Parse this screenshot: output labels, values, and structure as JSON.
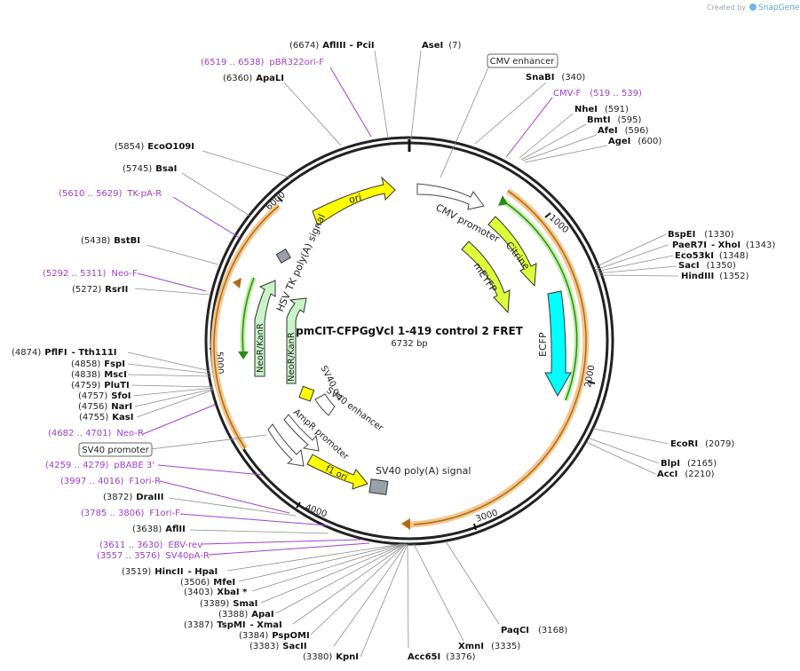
{
  "credit": {
    "prefix": "Created by",
    "brand": "SnapGene"
  },
  "map": {
    "name": "pmCIT-CFPGgVcl 1-419 control 2 FRET",
    "size": "6732 bp"
  },
  "ticks": [
    "1000",
    "2000",
    "3000",
    "4000",
    "5000",
    "6000"
  ],
  "boxed_labels": [
    "CMV enhancer",
    "SV40 promoter"
  ],
  "features": {
    "ori": "ori",
    "cmv_promoter": "CMV promoter",
    "citrine": "Citrine",
    "meyfp": "mEYFP",
    "ecfp": "ECFP",
    "hsv_tk": "HSV TK poly(A) signal",
    "neor1": "NeoR/KanR",
    "neor2": "NeoR/KanR",
    "sv40ori": "SV40 ori",
    "sv40enh": "SV40 enhancer",
    "ampr": "AmpR promoter",
    "f1ori": "f1 ori",
    "sv40pa": "SV40 poly(A) signal"
  },
  "colors": {
    "yellow": "#ffff00",
    "lime": "#dcff3a",
    "cyan": "#00ffff",
    "green_pale": "#c8f4c8",
    "orange": "#e8a84a",
    "primer": "#a23ed2"
  },
  "top_sites": [
    {
      "pos": "(6674)",
      "name": "AflIII",
      "extra": "- PciI"
    },
    {
      "name": "AseI",
      "pos": "(7)"
    },
    {
      "name": "SnaBI",
      "pos": "(340)"
    },
    {
      "name": "NheI",
      "pos": "(591)"
    },
    {
      "name": "BmtI",
      "pos": "(595)"
    },
    {
      "name": "AfeI",
      "pos": "(596)"
    },
    {
      "name": "AgeI",
      "pos": "(600)"
    },
    {
      "pos": "(6360)",
      "name": "ApaLI"
    },
    {
      "pos": "(5854)",
      "name": "EcoO109I"
    },
    {
      "pos": "(5745)",
      "name": "BsaI"
    },
    {
      "pos": "(5438)",
      "name": "BstBI"
    },
    {
      "pos": "(5272)",
      "name": "RsrII"
    }
  ],
  "right_sites": [
    {
      "name": "BspEI",
      "pos": "(1330)"
    },
    {
      "name": "PaeR7I",
      "extra": "- XhoI",
      "pos": "(1343)"
    },
    {
      "name": "Eco53kI",
      "pos": "(1348)"
    },
    {
      "name": "SacI",
      "pos": "(1350)"
    },
    {
      "name": "HindIII",
      "pos": "(1352)"
    },
    {
      "name": "EcoRI",
      "pos": "(2079)"
    },
    {
      "name": "BlpI",
      "pos": "(2165)"
    },
    {
      "name": "AccI",
      "pos": "(2210)"
    }
  ],
  "left_sites": [
    {
      "pos": "(4874)",
      "name": "PflFI",
      "extra": "- Tth111I"
    },
    {
      "pos": "(4858)",
      "name": "FspI"
    },
    {
      "pos": "(4838)",
      "name": "MscI"
    },
    {
      "pos": "(4759)",
      "name": "PluTI"
    },
    {
      "pos": "(4757)",
      "name": "SfoI"
    },
    {
      "pos": "(4756)",
      "name": "NarI"
    },
    {
      "pos": "(4755)",
      "name": "KasI"
    },
    {
      "pos": "(3872)",
      "name": "DraIII"
    },
    {
      "pos": "(3638)",
      "name": "AflII"
    }
  ],
  "bottom_sites": [
    {
      "pos": "(3519)",
      "name": "HincII",
      "extra": "- HpaI"
    },
    {
      "pos": "(3506)",
      "name": "MfeI"
    },
    {
      "pos": "(3403)",
      "name": "XbaI *"
    },
    {
      "pos": "(3389)",
      "name": "SmaI"
    },
    {
      "pos": "(3388)",
      "name": "ApaI"
    },
    {
      "pos": "(3387)",
      "name": "TspMI",
      "extra": "- XmaI"
    },
    {
      "pos": "(3384)",
      "name": "PspOMI"
    },
    {
      "pos": "(3383)",
      "name": "SacII"
    },
    {
      "pos": "(3380)",
      "name": "KpnI"
    },
    {
      "name": "Acc65I",
      "pos": "(3376)"
    },
    {
      "name": "XmnI",
      "pos": "(3335)"
    },
    {
      "name": "PaqCI",
      "pos": "(3168)"
    }
  ],
  "primers": [
    {
      "range": "(6519 .. 6538)",
      "name": "pBR322ori-F"
    },
    {
      "name": "CMV-F",
      "range": "(519 .. 539)"
    },
    {
      "range": "(5610 .. 5629)",
      "name": "TK-pA-R"
    },
    {
      "range": "(5292 .. 5311)",
      "name": "Neo-F"
    },
    {
      "range": "(4682 .. 4701)",
      "name": "Neo-R"
    },
    {
      "range": "(4259 .. 4279)",
      "name": "pBABE 3'"
    },
    {
      "range": "(3997 .. 4016)",
      "name": "F1ori-R"
    },
    {
      "range": "(3785 .. 3806)",
      "name": "F1ori-F"
    },
    {
      "range": "(3611 .. 3630)",
      "name": "EBV-rev"
    },
    {
      "range": "(3557 .. 3576)",
      "name": "SV40pA-R"
    }
  ]
}
